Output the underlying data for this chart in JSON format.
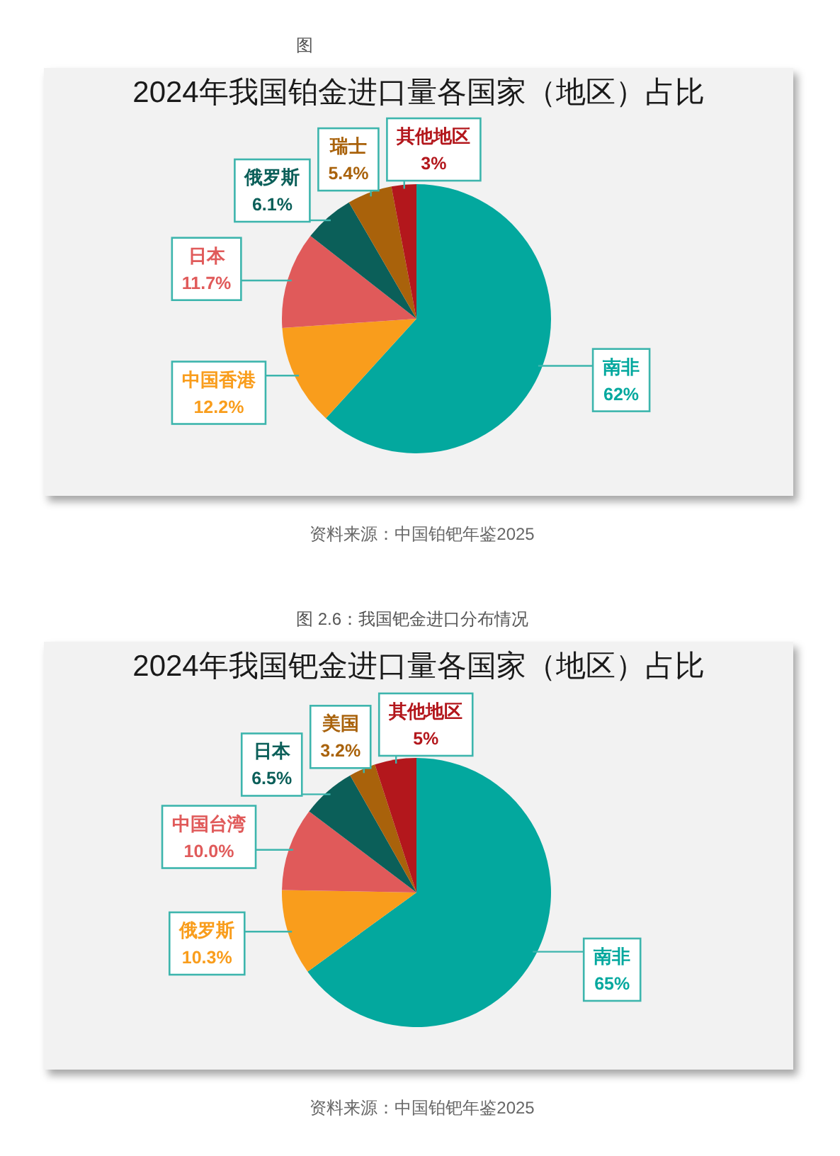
{
  "chart_data": [
    {
      "type": "pie",
      "title": "2024年我国铂金进口量各国家（地区）占比",
      "categories": [
        "南非",
        "中国香港",
        "日本",
        "俄罗斯",
        "瑞士",
        "其他地区"
      ],
      "values": [
        62,
        12.2,
        11.7,
        6.1,
        5.4,
        3
      ],
      "value_labels": [
        "62%",
        "12.2%",
        "11.7%",
        "6.1%",
        "5.4%",
        "3%"
      ],
      "colors": [
        "#03a89e",
        "#f99d1c",
        "#e05a5a",
        "#0b5f59",
        "#a9620b",
        "#b3171c"
      ],
      "annotations": [
        "图",
        "资料来源：中国铂钯年鉴2025"
      ]
    },
    {
      "type": "pie",
      "title": "2024年我国钯金进口量各国家（地区）占比",
      "categories": [
        "南非",
        "俄罗斯",
        "中国台湾",
        "日本",
        "美国",
        "其他地区"
      ],
      "values": [
        65,
        10.3,
        10.0,
        6.5,
        3.2,
        5
      ],
      "value_labels": [
        "65%",
        "10.3%",
        "10.0%",
        "6.5%",
        "3.2%",
        "5%"
      ],
      "colors": [
        "#03a89e",
        "#f99d1c",
        "#e05a5a",
        "#0b5f59",
        "#a9620b",
        "#b3171c"
      ],
      "annotations": [
        "图 2.6：我国钯金进口分布情况",
        "资料来源：中国铂钯年鉴2025"
      ]
    }
  ]
}
